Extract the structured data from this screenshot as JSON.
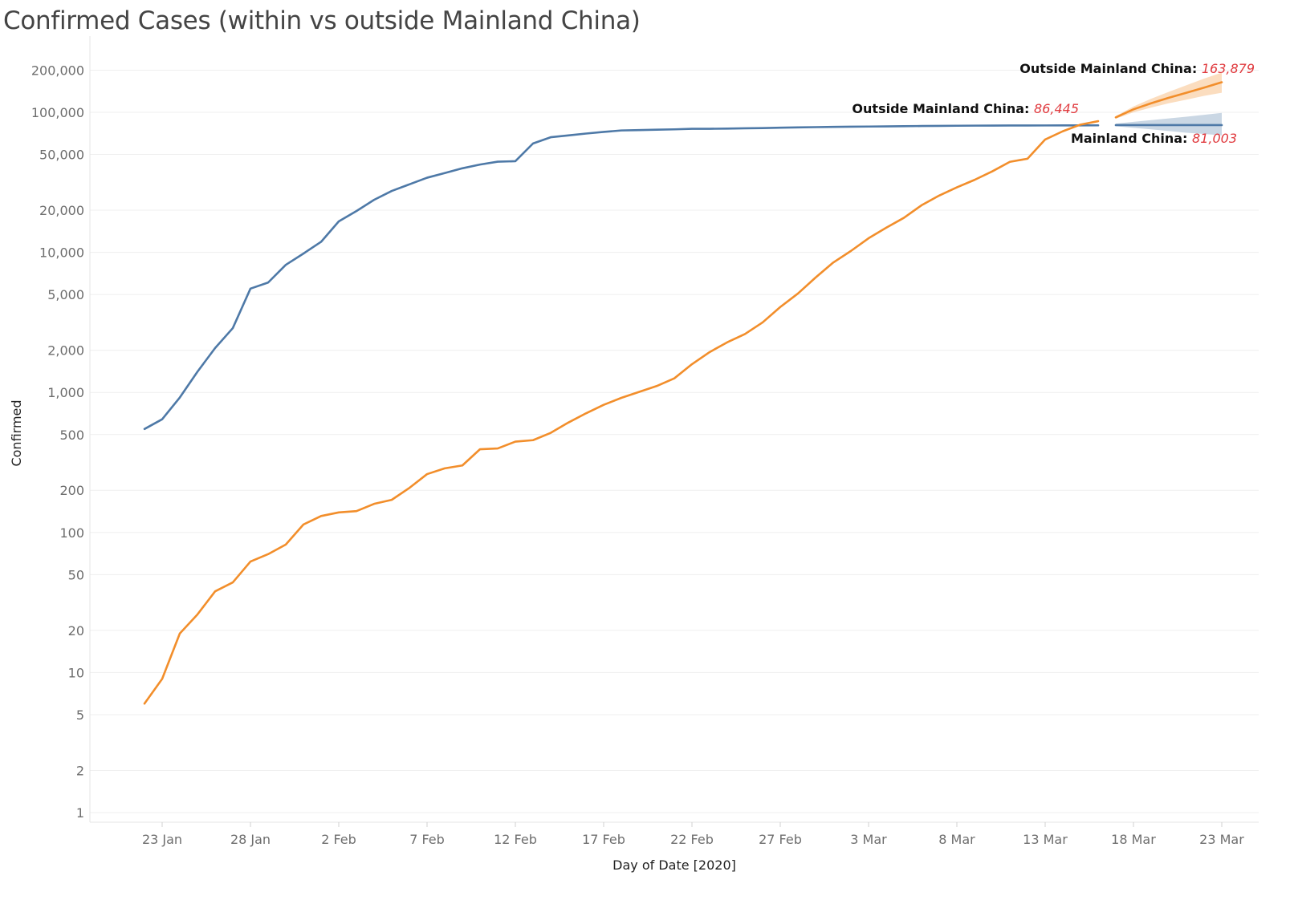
{
  "page": {
    "title": "Confirmed Cases (within vs outside Mainland China)"
  },
  "chart_data": {
    "type": "line",
    "title": "Confirmed Cases (within vs outside Mainland China)",
    "xlabel": "Day of Date [2020]",
    "ylabel": "Confirmed",
    "yscale": "log",
    "ylim": [
      1,
      300000
    ],
    "xlim": [
      "2020-01-19",
      "2020-03-24"
    ],
    "grid": "horizontal",
    "y_ticks": [
      {
        "value": 1,
        "label": "1"
      },
      {
        "value": 2,
        "label": "2"
      },
      {
        "value": 5,
        "label": "5"
      },
      {
        "value": 10,
        "label": "10"
      },
      {
        "value": 20,
        "label": "20"
      },
      {
        "value": 50,
        "label": "50"
      },
      {
        "value": 100,
        "label": "100"
      },
      {
        "value": 200,
        "label": "200"
      },
      {
        "value": 500,
        "label": "500"
      },
      {
        "value": 1000,
        "label": "1,000"
      },
      {
        "value": 2000,
        "label": "2,000"
      },
      {
        "value": 5000,
        "label": "5,000"
      },
      {
        "value": 10000,
        "label": "10,000"
      },
      {
        "value": 20000,
        "label": "20,000"
      },
      {
        "value": 50000,
        "label": "50,000"
      },
      {
        "value": 100000,
        "label": "100,000"
      },
      {
        "value": 200000,
        "label": "200,000"
      }
    ],
    "x_ticks": [
      {
        "date": "2020-01-23",
        "label": "23 Jan"
      },
      {
        "date": "2020-01-28",
        "label": "28 Jan"
      },
      {
        "date": "2020-02-02",
        "label": "2 Feb"
      },
      {
        "date": "2020-02-07",
        "label": "7 Feb"
      },
      {
        "date": "2020-02-12",
        "label": "12 Feb"
      },
      {
        "date": "2020-02-17",
        "label": "17 Feb"
      },
      {
        "date": "2020-02-22",
        "label": "22 Feb"
      },
      {
        "date": "2020-02-27",
        "label": "27 Feb"
      },
      {
        "date": "2020-03-03",
        "label": "3 Mar"
      },
      {
        "date": "2020-03-08",
        "label": "8 Mar"
      },
      {
        "date": "2020-03-13",
        "label": "13 Mar"
      },
      {
        "date": "2020-03-18",
        "label": "18 Mar"
      },
      {
        "date": "2020-03-23",
        "label": "23 Mar"
      }
    ],
    "x": [
      "2020-01-22",
      "2020-01-23",
      "2020-01-24",
      "2020-01-25",
      "2020-01-26",
      "2020-01-27",
      "2020-01-28",
      "2020-01-29",
      "2020-01-30",
      "2020-01-31",
      "2020-02-01",
      "2020-02-02",
      "2020-02-03",
      "2020-02-04",
      "2020-02-05",
      "2020-02-06",
      "2020-02-07",
      "2020-02-08",
      "2020-02-09",
      "2020-02-10",
      "2020-02-11",
      "2020-02-12",
      "2020-02-13",
      "2020-02-14",
      "2020-02-15",
      "2020-02-16",
      "2020-02-17",
      "2020-02-18",
      "2020-02-19",
      "2020-02-20",
      "2020-02-21",
      "2020-02-22",
      "2020-02-23",
      "2020-02-24",
      "2020-02-25",
      "2020-02-26",
      "2020-02-27",
      "2020-02-28",
      "2020-02-29",
      "2020-03-01",
      "2020-03-02",
      "2020-03-03",
      "2020-03-04",
      "2020-03-05",
      "2020-03-06",
      "2020-03-07",
      "2020-03-08",
      "2020-03-09",
      "2020-03-10",
      "2020-03-11",
      "2020-03-12",
      "2020-03-13",
      "2020-03-14",
      "2020-03-15",
      "2020-03-16"
    ],
    "series": [
      {
        "color": "#4e79a7",
        "values": [
          548,
          643,
          920,
          1406,
          2075,
          2877,
          5509,
          6087,
          8141,
          9802,
          11891,
          16630,
          19716,
          23707,
          27440,
          30587,
          34110,
          36814,
          39829,
          42354,
          44386,
          44759,
          59895,
          66358,
          68413,
          70513,
          72434,
          74211,
          74619,
          75077,
          75550,
          76200,
          76258,
          76543,
          76843,
          77152,
          77658,
          78063,
          78345,
          78650,
          78933,
          79140,
          79344,
          79616,
          79809,
          80033,
          80182,
          80319,
          80410,
          80482,
          80525,
          80566,
          80600,
          80642,
          80700
        ]
      },
      {
        "color": "#f28e2b",
        "values": [
          6,
          9,
          19,
          26,
          38,
          44,
          62,
          70,
          82,
          114,
          131,
          139,
          142,
          160,
          171,
          208,
          261,
          287,
          301,
          393,
          398,
          445,
          456,
          514,
          609,
          709,
          815,
          914,
          1008,
          1110,
          1260,
          1590,
          1940,
          2280,
          2610,
          3160,
          4070,
          5080,
          6610,
          8460,
          10230,
          12610,
          14990,
          17640,
          21690,
          25440,
          29100,
          32920,
          37840,
          44310,
          46620,
          63940,
          73240,
          81680,
          86445
        ]
      }
    ],
    "forecasts": [
      {
        "color": "#f28e2b",
        "x": [
          "2020-03-17",
          "2020-03-18",
          "2020-03-19",
          "2020-03-20",
          "2020-03-21",
          "2020-03-22",
          "2020-03-23"
        ],
        "values": [
          92000,
          105000,
          116000,
          127000,
          138000,
          150000,
          163879
        ],
        "lower": [
          90000,
          100000,
          108000,
          116000,
          123000,
          131000,
          138000
        ],
        "upper": [
          94000,
          110000,
          125000,
          140000,
          156000,
          174000,
          192000
        ]
      },
      {
        "color": "#4e79a7",
        "x": [
          "2020-03-17",
          "2020-03-18",
          "2020-03-19",
          "2020-03-20",
          "2020-03-21",
          "2020-03-22",
          "2020-03-23"
        ],
        "values": [
          81003,
          81003,
          81003,
          81003,
          81003,
          81003,
          81003
        ],
        "lower": [
          79500,
          77500,
          75500,
          73500,
          71500,
          70000,
          68500
        ],
        "upper": [
          83000,
          85500,
          88000,
          90500,
          93000,
          96000,
          99000
        ]
      }
    ],
    "annotations": [
      {
        "label": "Outside Mainland China:",
        "value": "163,879"
      },
      {
        "label": "Outside Mainland China:",
        "value": "86,445"
      },
      {
        "label": "Mainland China:",
        "value": "81,003"
      }
    ]
  }
}
